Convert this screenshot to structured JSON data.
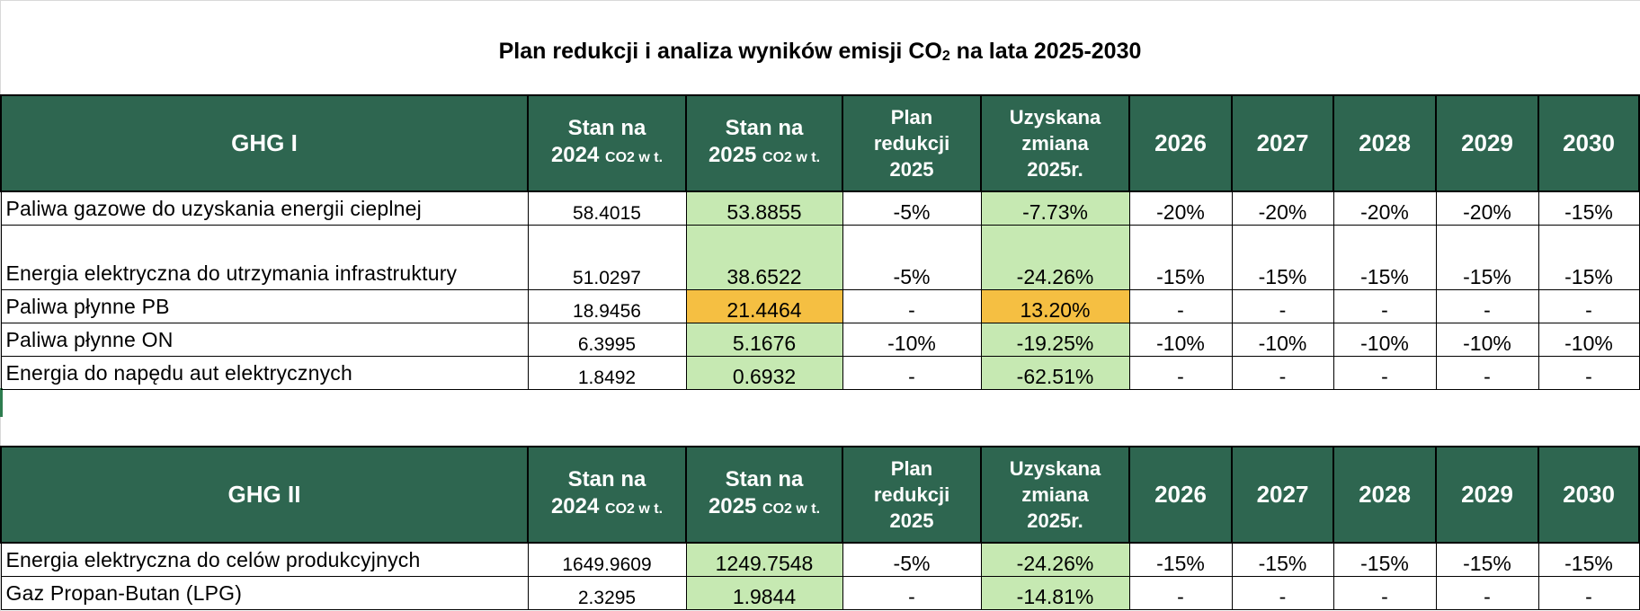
{
  "title": {
    "prefix": "Plan redukcji i analiza wyników emisji CO",
    "sub": "2",
    "suffix": " na lata 2025-2030"
  },
  "header": {
    "stan_na": "Stan na",
    "y2024": "2024",
    "y2025": "2025",
    "unit": "CO2 w t.",
    "plan_l1": "Plan",
    "plan_l2": "redukcji",
    "plan_l3": "2025",
    "uzy_l1": "Uzyskana",
    "uzy_l2": "zmiana",
    "uzy_l3": "2025r.",
    "years": [
      "2026",
      "2027",
      "2028",
      "2029",
      "2030"
    ]
  },
  "colors": {
    "header_bg": "#2e6650",
    "good": "#c6e9b2",
    "bad": "#f5bf42"
  },
  "tables": [
    {
      "name": "GHG I",
      "rows": [
        {
          "label": "Paliwa gazowe do uzyskania energii cieplnej",
          "v2024": "58.4015",
          "v2025": "53.8855",
          "plan": "-5%",
          "change": "-7.73%",
          "status": "good",
          "years": [
            "-20%",
            "-20%",
            "-20%",
            "-20%",
            "-15%"
          ]
        },
        {
          "label": "Energia elektryczna do utrzymania infrastruktury",
          "v2024": "51.0297",
          "v2025": "38.6522",
          "plan": "-5%",
          "change": "-24.26%",
          "status": "good",
          "years": [
            "-15%",
            "-15%",
            "-15%",
            "-15%",
            "-15%"
          ],
          "tall": true
        },
        {
          "label": "Paliwa płynne PB",
          "v2024": "18.9456",
          "v2025": "21.4464",
          "plan": "-",
          "change": "13.20%",
          "status": "bad",
          "years": [
            "-",
            "-",
            "-",
            "-",
            "-"
          ]
        },
        {
          "label": "Paliwa płynne ON",
          "v2024": "6.3995",
          "v2025": "5.1676",
          "plan": "-10%",
          "change": "-19.25%",
          "status": "good",
          "years": [
            "-10%",
            "-10%",
            "-10%",
            "-10%",
            "-10%"
          ]
        },
        {
          "label": "Energia do napędu aut elektrycznych",
          "v2024": "1.8492",
          "v2025": "0.6932",
          "plan": "-",
          "change": "-62.51%",
          "status": "good",
          "years": [
            "-",
            "-",
            "-",
            "-",
            "-"
          ]
        }
      ]
    },
    {
      "name": "GHG II",
      "rows": [
        {
          "label": "Energia elektryczna do celów produkcyjnych",
          "v2024": "1649.9609",
          "v2025": "1249.7548",
          "plan": "-5%",
          "change": "-24.26%",
          "status": "good",
          "years": [
            "-15%",
            "-15%",
            "-15%",
            "-15%",
            "-15%"
          ]
        },
        {
          "label": "Gaz Propan-Butan (LPG)",
          "v2024": "2.3295",
          "v2025": "1.9844",
          "plan": "-",
          "change": "-14.81%",
          "status": "good",
          "years": [
            "-",
            "-",
            "-",
            "-",
            "-"
          ]
        }
      ]
    }
  ]
}
